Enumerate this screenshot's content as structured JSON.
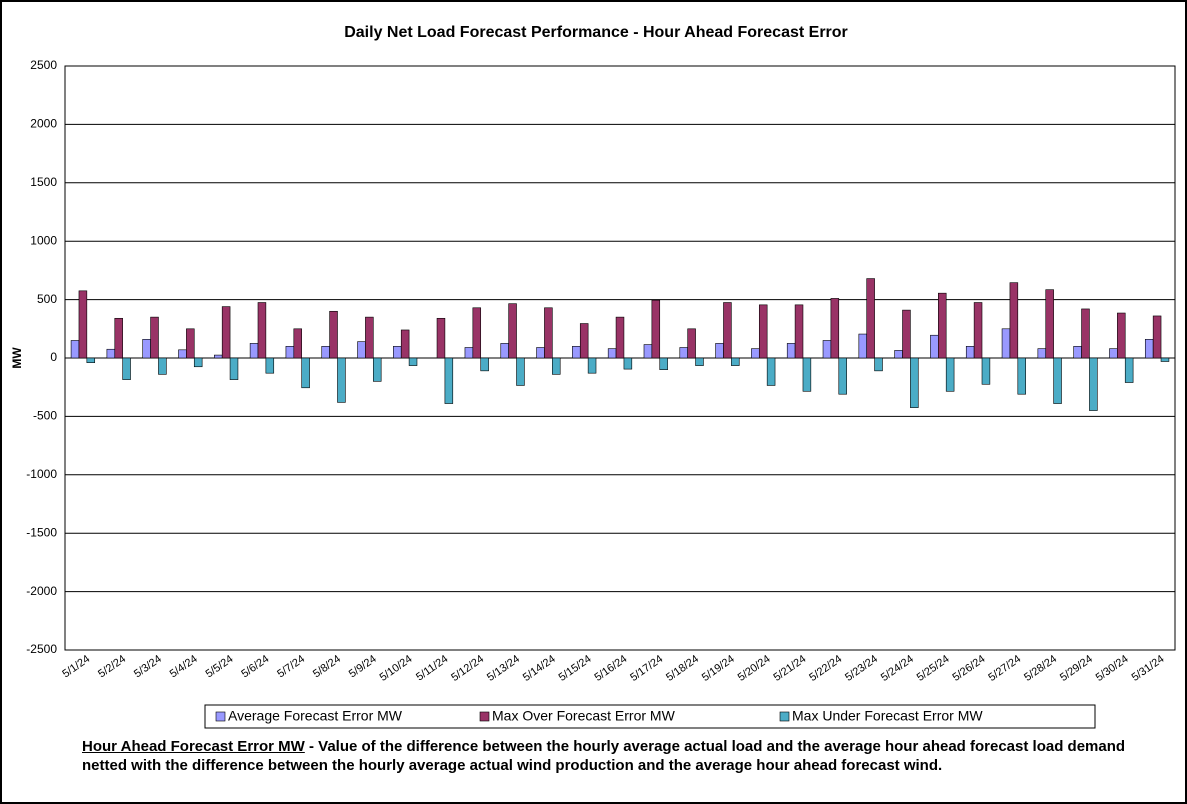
{
  "chart_data": {
    "type": "bar",
    "title": "Daily Net Load Forecast Performance - Hour Ahead Forecast Error",
    "y_label": "MW",
    "categories": [
      "5/1/24",
      "5/2/24",
      "5/3/24",
      "5/4/24",
      "5/5/24",
      "5/6/24",
      "5/7/24",
      "5/8/24",
      "5/9/24",
      "5/10/24",
      "5/11/24",
      "5/12/24",
      "5/13/24",
      "5/14/24",
      "5/15/24",
      "5/16/24",
      "5/17/24",
      "5/18/24",
      "5/19/24",
      "5/20/24",
      "5/21/24",
      "5/22/24",
      "5/23/24",
      "5/24/24",
      "5/25/24",
      "5/26/24",
      "5/27/24",
      "5/28/24",
      "5/29/24",
      "5/30/24",
      "5/31/24"
    ],
    "series": [
      {
        "name": "Average Forecast Error MW",
        "color": "#9999ff",
        "values": [
          150,
          75,
          160,
          70,
          25,
          125,
          100,
          100,
          140,
          100,
          0,
          90,
          125,
          90,
          100,
          80,
          115,
          90,
          125,
          80,
          125,
          150,
          205,
          65,
          195,
          100,
          250,
          80,
          100,
          80,
          160
        ]
      },
      {
        "name": "Max Over Forecast Error MW",
        "color": "#993366",
        "values": [
          575,
          340,
          350,
          250,
          440,
          475,
          250,
          400,
          350,
          240,
          340,
          430,
          465,
          430,
          295,
          350,
          495,
          250,
          475,
          455,
          455,
          510,
          680,
          410,
          555,
          475,
          645,
          585,
          420,
          385,
          360
        ]
      },
      {
        "name": "Max Under Forecast Error MW",
        "color": "#4bacc6",
        "values": [
          -40,
          -185,
          -140,
          -75,
          -185,
          -130,
          -255,
          -380,
          -200,
          -65,
          -390,
          -110,
          -235,
          -140,
          -130,
          -95,
          -100,
          -65,
          -65,
          -235,
          -285,
          -310,
          -110,
          -425,
          -285,
          -225,
          -310,
          -390,
          -450,
          -210,
          -30
        ]
      }
    ],
    "ylim": [
      -2500,
      2500
    ],
    "yticks": [
      -2500,
      -2000,
      -1500,
      -1000,
      -500,
      0,
      500,
      1000,
      1500,
      2000,
      2500
    ],
    "grid": true,
    "note": {
      "label": "Hour Ahead Forecast Error MW",
      "text": " - Value of the difference between the hourly average actual load and the average hour ahead forecast load demand netted with the difference between the hourly average actual wind production and the average hour ahead forecast wind."
    }
  }
}
